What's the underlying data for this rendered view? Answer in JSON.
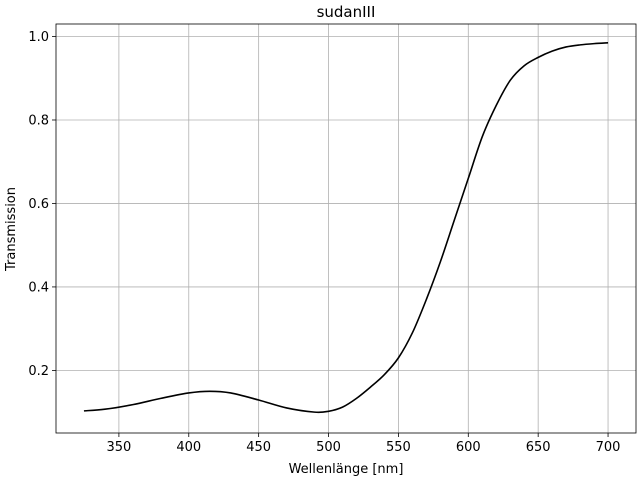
{
  "chart_data": {
    "type": "line",
    "title": "sudanIII",
    "xlabel": "Wellenlänge [nm]",
    "ylabel": "Transmission",
    "xlim": [
      305,
      720
    ],
    "ylim": [
      0.05,
      1.03
    ],
    "xticks": [
      350,
      400,
      450,
      500,
      550,
      600,
      650,
      700
    ],
    "yticks": [
      0.2,
      0.4,
      0.6,
      0.8,
      1.0
    ],
    "xtick_labels": [
      "350",
      "400",
      "450",
      "500",
      "550",
      "600",
      "650",
      "700"
    ],
    "ytick_labels": [
      "0.2",
      "0.4",
      "0.6",
      "0.8",
      "1.0"
    ],
    "grid": true,
    "series": [
      {
        "color": "#000000",
        "x": [
          325,
          340,
          360,
          380,
          400,
          415,
          430,
          450,
          470,
          490,
          500,
          510,
          520,
          530,
          540,
          550,
          560,
          570,
          580,
          590,
          600,
          610,
          620,
          630,
          640,
          650,
          660,
          670,
          680,
          690,
          700
        ],
        "y": [
          0.103,
          0.107,
          0.118,
          0.133,
          0.146,
          0.15,
          0.146,
          0.129,
          0.11,
          0.1,
          0.102,
          0.112,
          0.133,
          0.16,
          0.19,
          0.23,
          0.29,
          0.37,
          0.46,
          0.56,
          0.66,
          0.76,
          0.835,
          0.895,
          0.93,
          0.95,
          0.965,
          0.975,
          0.98,
          0.983,
          0.985
        ]
      }
    ]
  }
}
